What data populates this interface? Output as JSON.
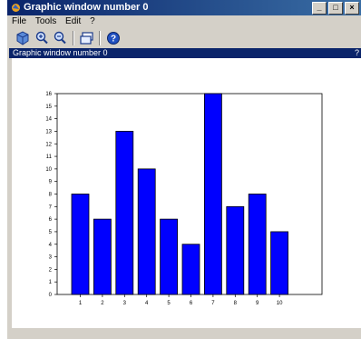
{
  "window": {
    "title": "Graphic window number 0",
    "buttons": {
      "minimize": "_",
      "maximize": "□",
      "close": "×"
    }
  },
  "menu": {
    "items": [
      "File",
      "Tools",
      "Edit",
      "?"
    ]
  },
  "toolbar": {
    "icons": [
      "rotate-icon",
      "zoom-in-icon",
      "zoom-out-icon",
      "window-icon",
      "help-icon"
    ]
  },
  "subbar": {
    "title": "Graphic window number 0",
    "right_marker": "?"
  },
  "colors": {
    "bar_fill": "#0000ff",
    "title_bar": "#0a246a"
  },
  "chart_data": {
    "type": "bar",
    "categories": [
      "1",
      "2",
      "3",
      "4",
      "5",
      "6",
      "7",
      "8",
      "9",
      "10"
    ],
    "values": [
      8,
      6,
      13,
      10,
      6,
      4,
      16,
      7,
      8,
      5
    ],
    "ylim": [
      0,
      16
    ],
    "yticks": [
      "0",
      "1",
      "2",
      "3",
      "4",
      "5",
      "6",
      "7",
      "8",
      "9",
      "10",
      "11",
      "12",
      "13",
      "14",
      "15",
      "16"
    ],
    "title": "",
    "xlabel": "",
    "ylabel": "",
    "grid": false
  }
}
